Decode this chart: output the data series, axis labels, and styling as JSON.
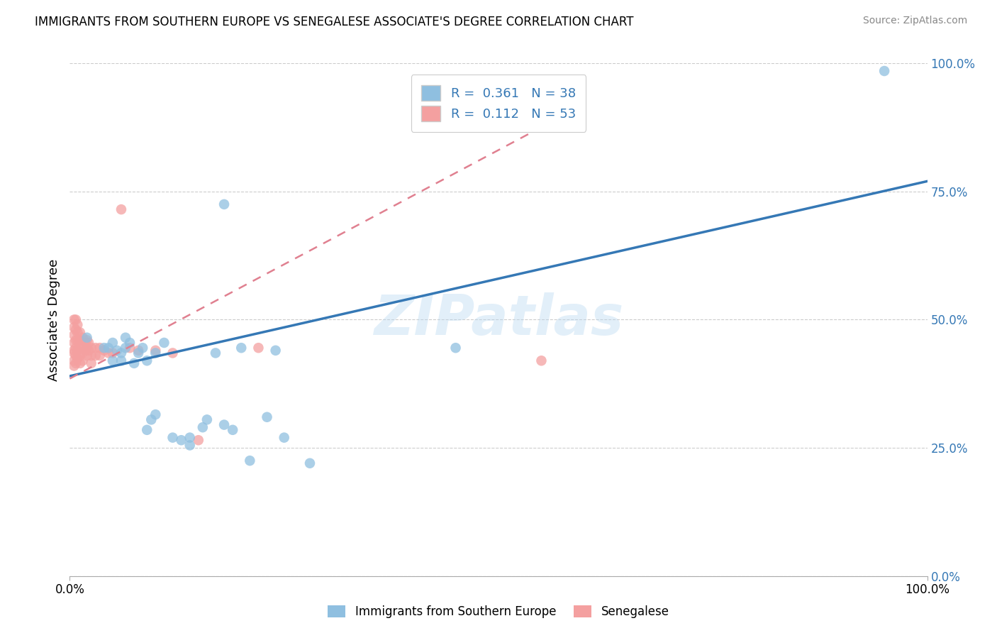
{
  "title": "IMMIGRANTS FROM SOUTHERN EUROPE VS SENEGALESE ASSOCIATE'S DEGREE CORRELATION CHART",
  "source": "Source: ZipAtlas.com",
  "ylabel": "Associate's Degree",
  "xlim": [
    0,
    1.0
  ],
  "ylim": [
    0,
    1.0
  ],
  "ytick_labels": [
    "0.0%",
    "25.0%",
    "50.0%",
    "75.0%",
    "100.0%"
  ],
  "ytick_positions": [
    0.0,
    0.25,
    0.5,
    0.75,
    1.0
  ],
  "legend_r_blue": "0.361",
  "legend_n_blue": "38",
  "legend_r_pink": "0.112",
  "legend_n_pink": "53",
  "blue_color": "#8fbfe0",
  "pink_color": "#f4a0a0",
  "trendline_blue_color": "#3578b5",
  "trendline_pink_color": "#e08090",
  "watermark": "ZIPatlas",
  "blue_scatter_x": [
    0.02,
    0.04,
    0.045,
    0.05,
    0.05,
    0.055,
    0.06,
    0.06,
    0.065,
    0.065,
    0.07,
    0.075,
    0.08,
    0.085,
    0.09,
    0.09,
    0.095,
    0.1,
    0.1,
    0.11,
    0.12,
    0.13,
    0.14,
    0.14,
    0.16,
    0.18,
    0.18,
    0.19,
    0.2,
    0.21,
    0.23,
    0.25,
    0.28,
    0.45,
    0.95,
    0.24,
    0.155,
    0.17
  ],
  "blue_scatter_y": [
    0.465,
    0.445,
    0.445,
    0.455,
    0.42,
    0.44,
    0.435,
    0.42,
    0.445,
    0.465,
    0.455,
    0.415,
    0.435,
    0.445,
    0.42,
    0.285,
    0.305,
    0.435,
    0.315,
    0.455,
    0.27,
    0.265,
    0.27,
    0.255,
    0.305,
    0.295,
    0.725,
    0.285,
    0.445,
    0.225,
    0.31,
    0.27,
    0.22,
    0.445,
    0.985,
    0.44,
    0.29,
    0.435
  ],
  "pink_scatter_x": [
    0.005,
    0.005,
    0.005,
    0.005,
    0.005,
    0.005,
    0.005,
    0.005,
    0.007,
    0.007,
    0.007,
    0.007,
    0.007,
    0.007,
    0.009,
    0.009,
    0.009,
    0.009,
    0.009,
    0.012,
    0.012,
    0.012,
    0.012,
    0.012,
    0.015,
    0.015,
    0.015,
    0.015,
    0.018,
    0.018,
    0.02,
    0.02,
    0.02,
    0.022,
    0.022,
    0.025,
    0.025,
    0.025,
    0.03,
    0.03,
    0.035,
    0.035,
    0.04,
    0.045,
    0.05,
    0.06,
    0.07,
    0.08,
    0.1,
    0.12,
    0.15,
    0.22,
    0.55
  ],
  "pink_scatter_y": [
    0.5,
    0.485,
    0.47,
    0.455,
    0.44,
    0.435,
    0.42,
    0.41,
    0.5,
    0.48,
    0.46,
    0.445,
    0.43,
    0.415,
    0.49,
    0.475,
    0.46,
    0.44,
    0.425,
    0.475,
    0.46,
    0.445,
    0.43,
    0.415,
    0.465,
    0.45,
    0.435,
    0.42,
    0.455,
    0.44,
    0.46,
    0.445,
    0.43,
    0.455,
    0.44,
    0.445,
    0.43,
    0.415,
    0.445,
    0.43,
    0.445,
    0.43,
    0.44,
    0.435,
    0.435,
    0.715,
    0.445,
    0.44,
    0.44,
    0.435,
    0.265,
    0.445,
    0.42
  ],
  "blue_trend_x0": 0.0,
  "blue_trend_y0": 0.39,
  "blue_trend_x1": 1.0,
  "blue_trend_y1": 0.77,
  "pink_trend_x0": 0.0,
  "pink_trend_y0": 0.385,
  "pink_trend_x1": 0.6,
  "pink_trend_y1": 0.92
}
